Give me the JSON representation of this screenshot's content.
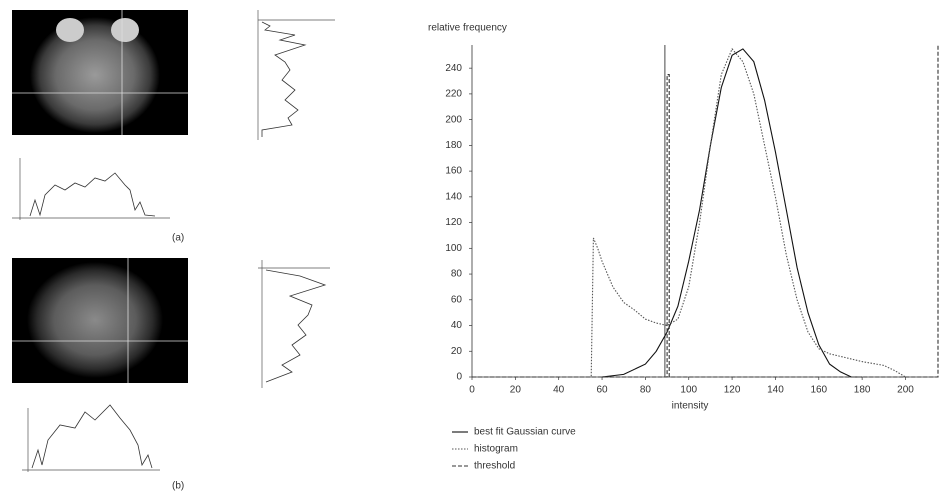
{
  "chart_data": {
    "type": "line",
    "y_label": "relative frequency",
    "x_label": "intensity",
    "xlim": [
      0,
      215
    ],
    "ylim": [
      0,
      258
    ],
    "xticks": [
      0,
      20,
      40,
      60,
      80,
      100,
      120,
      140,
      160,
      180,
      200
    ],
    "yticks": [
      0,
      20,
      40,
      60,
      80,
      100,
      120,
      140,
      160,
      180,
      200,
      220,
      240
    ],
    "vlines": [
      89
    ],
    "series": [
      {
        "name": "best fit Gaussian curve",
        "color": "#111111",
        "dash": "none",
        "x": [
          60,
          70,
          80,
          85,
          90,
          95,
          100,
          105,
          110,
          115,
          120,
          125,
          130,
          135,
          140,
          145,
          150,
          155,
          160,
          165,
          170,
          175,
          180
        ],
        "values": [
          0,
          2,
          10,
          20,
          35,
          55,
          90,
          130,
          180,
          225,
          250,
          255,
          245,
          215,
          175,
          130,
          85,
          50,
          25,
          10,
          4,
          0,
          0
        ]
      },
      {
        "name": "histogram",
        "color": "#555555",
        "dash": "1.5 1.5",
        "x": [
          0,
          55,
          56,
          58,
          60,
          65,
          70,
          75,
          80,
          85,
          90,
          95,
          100,
          105,
          110,
          115,
          120,
          125,
          130,
          135,
          140,
          145,
          150,
          155,
          160,
          165,
          170,
          180,
          190,
          195,
          200
        ],
        "values": [
          0,
          0,
          108,
          100,
          90,
          70,
          58,
          52,
          45,
          42,
          40,
          45,
          70,
          120,
          180,
          235,
          255,
          245,
          220,
          180,
          140,
          95,
          60,
          35,
          22,
          18,
          16,
          12,
          9,
          5,
          0
        ]
      },
      {
        "name": "threshold",
        "color": "#333333",
        "dash": "4 2",
        "x": [
          0,
          90,
          90,
          91,
          91,
          215,
          215
        ],
        "values": [
          0,
          0,
          235,
          235,
          0,
          0,
          258
        ]
      }
    ]
  },
  "figure_labels": [
    "(a)",
    "(b)"
  ]
}
